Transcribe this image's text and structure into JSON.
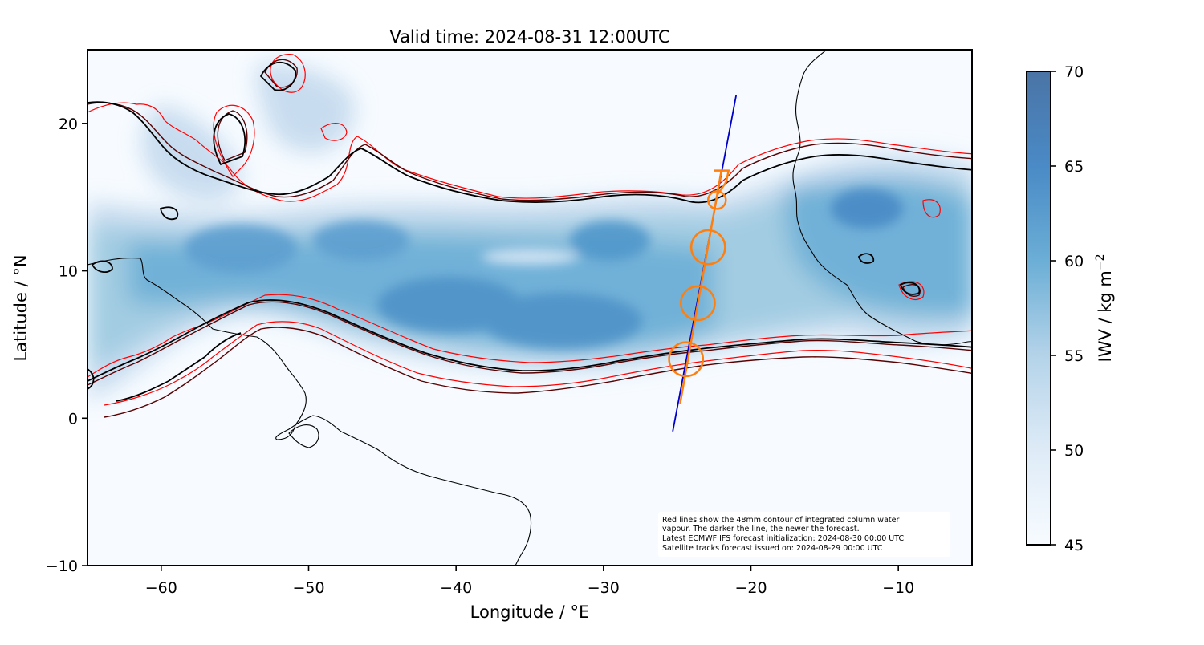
{
  "title": "Valid time: 2024-08-31 12:00UTC",
  "axes": {
    "xlabel": "Longitude / °E",
    "ylabel": "Latitude / °N",
    "x_range": [
      -65,
      -5
    ],
    "y_range": [
      -10,
      25
    ],
    "x_ticks": [
      {
        "value": -60,
        "label": "−60"
      },
      {
        "value": -50,
        "label": "−50"
      },
      {
        "value": -40,
        "label": "−40"
      },
      {
        "value": -30,
        "label": "−30"
      },
      {
        "value": -20,
        "label": "−20"
      },
      {
        "value": -10,
        "label": "−10"
      }
    ],
    "y_ticks": [
      {
        "value": -10,
        "label": "−10"
      },
      {
        "value": 0,
        "label": "0"
      },
      {
        "value": 10,
        "label": "10"
      },
      {
        "value": 20,
        "label": "20"
      }
    ]
  },
  "colorbar": {
    "label": "IWV / kg m",
    "label_superscript": "−2",
    "range": [
      45,
      70
    ],
    "ticks": [
      {
        "value": 45,
        "label": "45"
      },
      {
        "value": 50,
        "label": "50"
      },
      {
        "value": 55,
        "label": "55"
      },
      {
        "value": 60,
        "label": "60"
      },
      {
        "value": 65,
        "label": "65"
      },
      {
        "value": 70,
        "label": "70"
      }
    ],
    "colormap": "Blues",
    "color_low": "#f7fbff",
    "color_high": "#4a74a6"
  },
  "annotation": [
    "Red lines show the 48mm contour of integrated column water",
    "vapour. The darker the line, the newer the forecast.",
    "Latest ECMWF IFS forecast initialization: 2024-08-30 00:00 UTC",
    "Satellite tracks forecast issued on: 2024-08-29 00:00 UTC"
  ],
  "satellite_track": {
    "color": "#0000cc",
    "start": {
      "lon": -25.3,
      "lat": -0.9
    },
    "end": {
      "lon": -21.0,
      "lat": 21.9
    }
  },
  "flight_track": {
    "color": "#ff7f0e",
    "start": {
      "lon": -24.8,
      "lat": 1.0
    },
    "end": {
      "lon": -22.0,
      "lat": 16.8
    },
    "circles": [
      {
        "lon": -24.4,
        "lat": 4.0,
        "radius_deg": 1.15
      },
      {
        "lon": -23.6,
        "lat": 7.8,
        "radius_deg": 1.15
      },
      {
        "lon": -22.9,
        "lat": 11.6,
        "radius_deg": 1.15
      },
      {
        "lon": -22.3,
        "lat": 14.8,
        "radius_deg": 0.6
      }
    ]
  },
  "contour_colors": {
    "latest": "#000000",
    "older": "#5a0000",
    "oldest": "#ff0000"
  }
}
